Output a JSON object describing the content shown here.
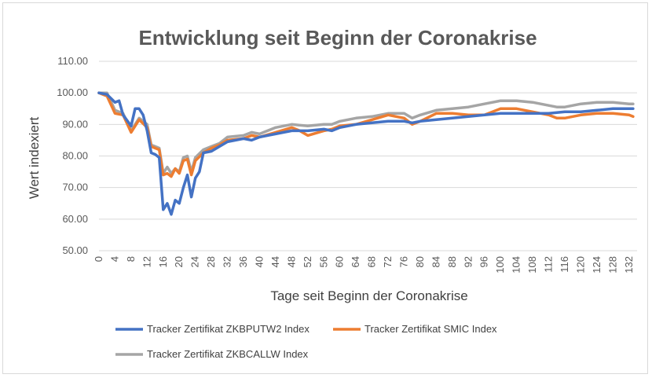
{
  "chart_data": {
    "type": "line",
    "title": "Entwicklung seit Beginn der Coronakrise",
    "xlabel": "Tage seit Beginn der Coronakrise",
    "ylabel": "Wert indexiert",
    "ylim": [
      50,
      110
    ],
    "y_ticks": [
      "50.00",
      "60.00",
      "70.00",
      "80.00",
      "90.00",
      "100.00",
      "110.00"
    ],
    "x_ticks": [
      0,
      4,
      8,
      12,
      16,
      20,
      24,
      28,
      32,
      36,
      40,
      44,
      48,
      52,
      56,
      60,
      64,
      68,
      72,
      76,
      80,
      84,
      88,
      92,
      96,
      100,
      104,
      108,
      112,
      116,
      120,
      124,
      128,
      132
    ],
    "grid": "horizontal",
    "legend_position": "bottom",
    "series": [
      {
        "name": "Tracker Zertifikat ZKBPUTW2 Index",
        "color": "#4472c4",
        "x": [
          0,
          2,
          4,
          5,
          6,
          8,
          9,
          10,
          11,
          12,
          13,
          14,
          15,
          16,
          17,
          18,
          19,
          20,
          21,
          22,
          23,
          24,
          25,
          26,
          28,
          30,
          32,
          34,
          36,
          38,
          40,
          42,
          44,
          48,
          52,
          56,
          58,
          60,
          64,
          68,
          72,
          76,
          78,
          80,
          84,
          88,
          92,
          96,
          100,
          104,
          108,
          112,
          116,
          120,
          124,
          128,
          133
        ],
        "values": [
          100,
          99.5,
          97,
          97.5,
          93,
          89.5,
          95,
          95,
          93,
          88,
          81,
          80.5,
          79.5,
          63,
          65,
          61.5,
          66,
          65,
          70,
          74,
          67,
          73,
          75,
          81,
          81.5,
          83,
          84.5,
          85,
          85.5,
          85,
          86,
          86.5,
          87,
          88,
          88,
          88.5,
          88,
          89,
          90,
          90.5,
          91,
          91,
          90.5,
          91,
          91.5,
          92,
          92.5,
          93,
          93.5,
          93.5,
          93.5,
          93.5,
          94,
          94,
          94.5,
          95,
          95
        ]
      },
      {
        "name": "Tracker Zertifikat SMIC Index",
        "color": "#ed7d31",
        "x": [
          0,
          2,
          4,
          6,
          8,
          10,
          12,
          13,
          14,
          15,
          16,
          17,
          18,
          19,
          20,
          21,
          22,
          23,
          24,
          26,
          28,
          30,
          32,
          36,
          38,
          40,
          44,
          48,
          50,
          52,
          56,
          58,
          60,
          64,
          68,
          72,
          76,
          78,
          80,
          84,
          88,
          92,
          96,
          100,
          104,
          108,
          112,
          114,
          116,
          120,
          124,
          128,
          132,
          133
        ],
        "values": [
          100,
          99,
          93.5,
          93,
          87.5,
          91.5,
          89,
          83,
          82.5,
          82,
          74,
          74.5,
          73.5,
          76,
          74.5,
          78.5,
          79,
          74,
          78.5,
          81,
          82.5,
          83.5,
          85,
          85.5,
          86.5,
          86,
          87.5,
          89,
          88,
          86.5,
          88,
          88.5,
          89.5,
          90,
          91.5,
          93,
          92,
          90,
          91,
          93.5,
          93.5,
          93,
          93,
          95,
          95,
          94,
          93,
          92,
          92,
          93,
          93.5,
          93.5,
          93,
          92.5
        ]
      },
      {
        "name": "Tracker Zertifikat ZKBCALLW Index",
        "color": "#a5a5a5",
        "x": [
          0,
          2,
          4,
          6,
          8,
          10,
          12,
          13,
          14,
          15,
          16,
          17,
          18,
          19,
          20,
          21,
          22,
          23,
          24,
          26,
          28,
          30,
          32,
          36,
          38,
          40,
          44,
          48,
          52,
          56,
          58,
          60,
          64,
          68,
          72,
          76,
          78,
          80,
          84,
          88,
          92,
          96,
          100,
          104,
          108,
          112,
          114,
          116,
          120,
          124,
          128,
          132,
          133
        ],
        "values": [
          100,
          100,
          94.5,
          93.5,
          88,
          92,
          90,
          83.5,
          83,
          82.5,
          74.5,
          76.5,
          74.5,
          76,
          75,
          79.5,
          80,
          75,
          79.5,
          82,
          83,
          84,
          86,
          86.5,
          87.5,
          87,
          89,
          90,
          89.5,
          90,
          90,
          91,
          92,
          92.5,
          93.5,
          93.5,
          92,
          93,
          94.5,
          95,
          95.5,
          96.5,
          97.5,
          97.5,
          97,
          96,
          95.5,
          95.5,
          96.5,
          97,
          97,
          96.5,
          96.5
        ]
      }
    ]
  }
}
